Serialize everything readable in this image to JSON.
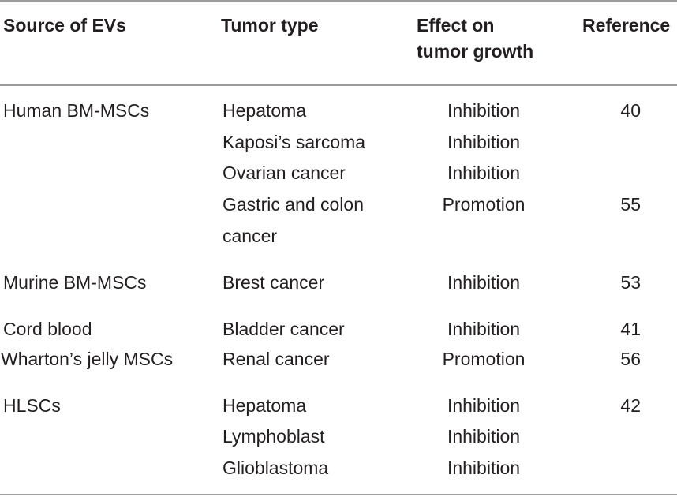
{
  "headers": {
    "source": "Source of EVs",
    "tumor": "Tumor type",
    "effect_line1": "Effect on",
    "effect_line2": "tumor growth",
    "reference": "Reference"
  },
  "groups": [
    {
      "source": "Human BM-MSCs",
      "rows": [
        {
          "tumor": "Hepatoma",
          "effect": "Inhibition",
          "reference": "40"
        },
        {
          "tumor": "Kaposi’s sarcoma",
          "effect": "Inhibition",
          "reference": ""
        },
        {
          "tumor": "Ovarian cancer",
          "effect": "Inhibition",
          "reference": ""
        },
        {
          "tumor_line1": "Gastric and colon",
          "tumor_line2": "cancer",
          "effect": "Promotion",
          "reference": "55"
        }
      ]
    },
    {
      "source": "Murine BM-MSCs",
      "rows": [
        {
          "tumor": "Brest cancer",
          "effect": "Inhibition",
          "reference": "53"
        }
      ]
    },
    {
      "source": "Cord blood",
      "rows": [
        {
          "tumor": "Bladder cancer",
          "effect": "Inhibition",
          "reference": "41"
        }
      ]
    },
    {
      "source": "Wharton’s jelly MSCs",
      "rows": [
        {
          "tumor": "Renal cancer",
          "effect": "Promotion",
          "reference": "56"
        }
      ]
    },
    {
      "source": "HLSCs",
      "rows": [
        {
          "tumor": "Hepatoma",
          "effect": "Inhibition",
          "reference": "42"
        },
        {
          "tumor": "Lymphoblast",
          "effect": "Inhibition",
          "reference": ""
        },
        {
          "tumor": "Glioblastoma",
          "effect": "Inhibition",
          "reference": ""
        }
      ]
    }
  ]
}
